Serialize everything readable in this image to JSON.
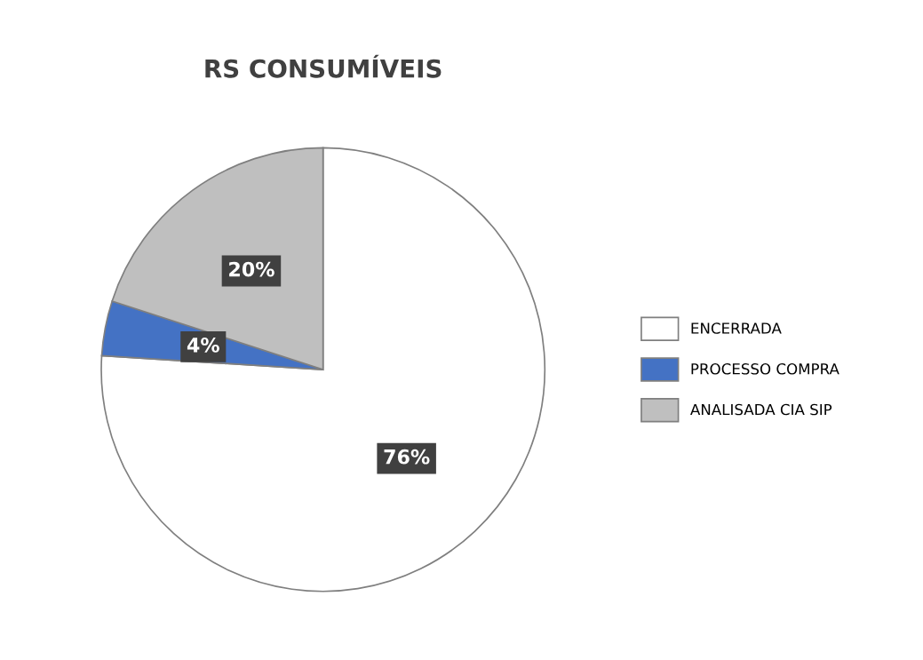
{
  "chart_data": {
    "type": "pie",
    "title": "RS CONSUMÍVEIS",
    "categories": [
      "ENCERRADA",
      "PROCESSO COMPRA",
      "ANALISADA CIA SIP"
    ],
    "values": [
      76,
      4,
      20
    ],
    "colors": [
      "#ffffff",
      "#4472c4",
      "#bfbfbf"
    ],
    "value_labels": [
      "76%",
      "4%",
      "20%"
    ],
    "legend": "right"
  }
}
